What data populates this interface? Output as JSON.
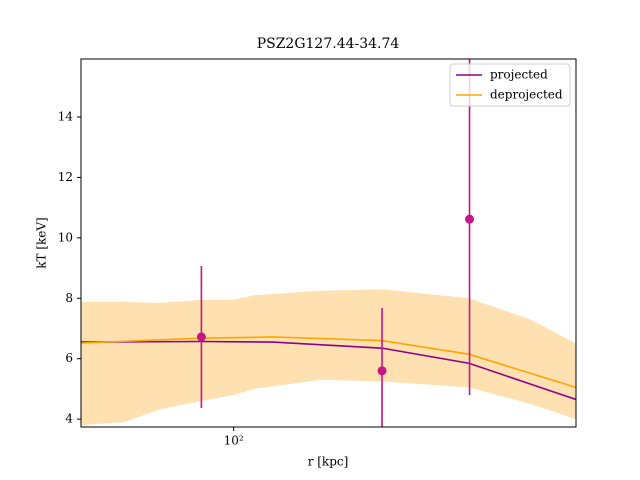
{
  "chart_data": {
    "type": "line",
    "title": "PSZ2G127.44-34.74",
    "xlabel": "r [kpc]",
    "ylabel": "kT [keV]",
    "xscale": "log",
    "xlim": [
      49,
      495
    ],
    "ylim": [
      3.74,
      15.92
    ],
    "xticks": [
      {
        "value": 100,
        "label": "10²"
      }
    ],
    "yticks": [
      4,
      6,
      8,
      10,
      12,
      14
    ],
    "legend": "upper right",
    "series": [
      {
        "name": "projected",
        "color": "#8b008b",
        "x": [
          49,
          86,
          120,
          200,
          300,
          495
        ],
        "values": [
          6.55,
          6.57,
          6.55,
          6.35,
          5.85,
          4.65
        ]
      },
      {
        "name": "deprojected",
        "color": "#ffa500",
        "x": [
          49,
          86,
          120,
          200,
          300,
          495
        ],
        "values": [
          6.52,
          6.68,
          6.72,
          6.6,
          6.15,
          5.05
        ]
      }
    ],
    "band": {
      "color": "#ffe0b0",
      "x": [
        49,
        60,
        70,
        80,
        86,
        100,
        110,
        150,
        200,
        300,
        400,
        495
      ],
      "upper": [
        7.88,
        7.88,
        7.85,
        7.9,
        7.95,
        7.95,
        8.1,
        8.25,
        8.3,
        8.0,
        7.3,
        6.5
      ],
      "lower": [
        3.8,
        3.9,
        4.3,
        4.5,
        4.6,
        4.8,
        5.0,
        5.3,
        5.25,
        5.05,
        4.5,
        4.0
      ]
    },
    "points": {
      "color": "#c71585",
      "x": [
        86,
        200,
        301
      ],
      "values": [
        6.72,
        5.6,
        10.62
      ],
      "errors": [
        2.35,
        2.08,
        5.82
      ]
    }
  }
}
